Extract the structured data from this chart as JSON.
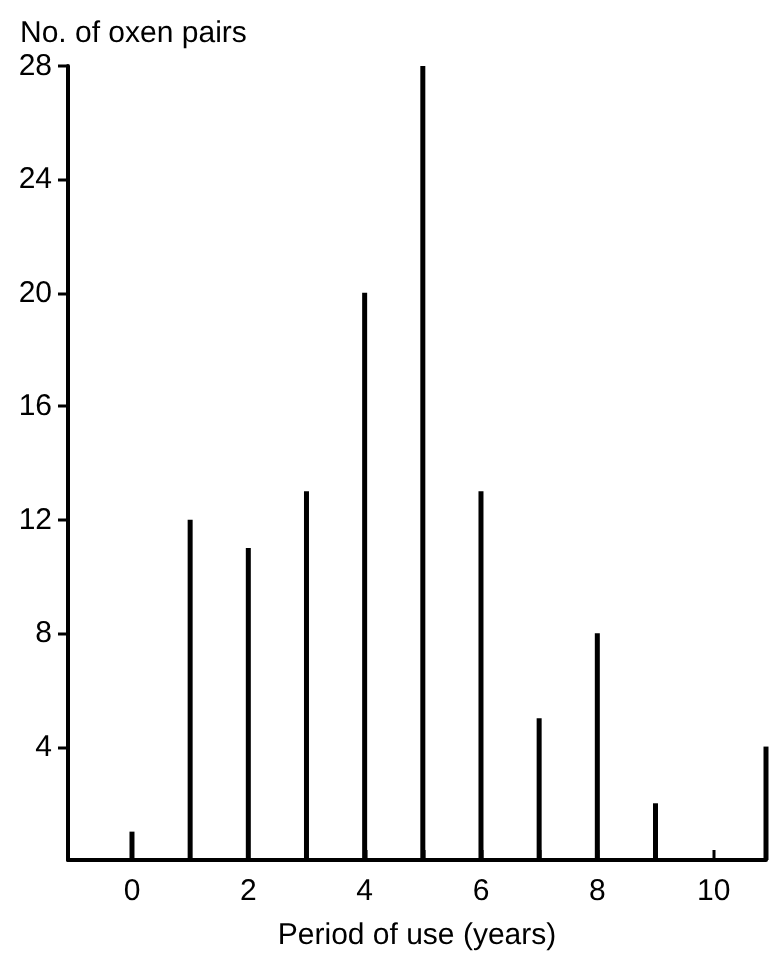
{
  "chart_data": {
    "type": "bar",
    "title": "No. of oxen pairs",
    "xlabel": "Period of use (years)",
    "x": [
      0,
      1,
      2,
      3,
      4,
      5,
      6,
      7,
      8,
      9,
      10.9
    ],
    "values": [
      1,
      12,
      11,
      13,
      20,
      28,
      13,
      5,
      8,
      2,
      4
    ],
    "color": "#000000",
    "xlim": [
      -1.1,
      10.9
    ],
    "xticks": [
      0,
      {
        "value": 1,
        "label": null
      },
      2,
      {
        "value": 3,
        "label": null
      },
      4,
      {
        "value": 5,
        "label": null
      },
      6,
      {
        "value": 7,
        "label": null
      },
      8,
      {
        "value": 9,
        "label": null
      },
      10
    ],
    "ylim": [
      0,
      28
    ],
    "yticks": [
      4,
      8,
      12,
      16,
      20,
      24,
      28
    ]
  }
}
